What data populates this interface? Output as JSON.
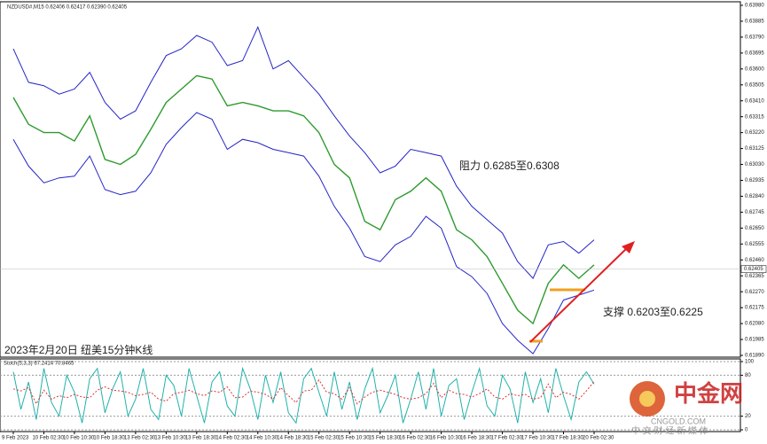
{
  "chart_data": [
    {
      "type": "line",
      "title": "NZDUSD#,M15 0.62406 0.62417 0.62390 0.62405",
      "categories": [
        "9 Feb 2023",
        null,
        "10 Feb 02:30",
        null,
        "10 Feb 10:30",
        null,
        "10 Feb 18:30",
        null,
        "13 Feb 02:30",
        null,
        "13 Feb 10:30",
        null,
        "13 Feb 18:30",
        null,
        "14 Feb 02:30",
        null,
        "14 Feb 10:30",
        null,
        "14 Feb 18:30",
        null,
        "15 Feb 02:30",
        null,
        "15 Feb 10:30",
        null,
        "15 Feb 18:30",
        null,
        "16 Feb 02:30",
        null,
        "16 Feb 10:30",
        null,
        "16 Feb 18:30",
        null,
        "17 Feb 02:30",
        null,
        "17 Feb 10:30",
        null,
        "17 Feb 18:30",
        null,
        "20 Feb 02:30"
      ],
      "series": [
        {
          "name": "close",
          "color": "#2e9a2e",
          "values": [
            0.6343,
            0.6327,
            0.6322,
            0.6322,
            0.6317,
            0.6332,
            0.6306,
            0.6303,
            0.6309,
            0.6324,
            0.634,
            0.6348,
            0.6356,
            0.6354,
            0.6338,
            0.634,
            0.6338,
            0.6335,
            0.6335,
            0.6332,
            0.6322,
            0.6303,
            0.6295,
            0.6269,
            0.6264,
            0.6282,
            0.6287,
            0.6295,
            0.6287,
            0.6264,
            0.6258,
            0.6248,
            0.6232,
            0.6216,
            0.6208,
            0.6232,
            0.6243,
            0.6235,
            0.6243
          ]
        },
        {
          "name": "upper",
          "color": "#2424c8",
          "values": [
            0.6372,
            0.6352,
            0.635,
            0.6345,
            0.6348,
            0.6358,
            0.634,
            0.633,
            0.6335,
            0.6352,
            0.6368,
            0.6372,
            0.638,
            0.6376,
            0.6362,
            0.6365,
            0.6385,
            0.636,
            0.6365,
            0.6355,
            0.6345,
            0.6332,
            0.632,
            0.631,
            0.6298,
            0.6302,
            0.6312,
            0.631,
            0.6308,
            0.629,
            0.6278,
            0.627,
            0.6262,
            0.6245,
            0.6235,
            0.6255,
            0.6257,
            0.625,
            0.6258
          ]
        },
        {
          "name": "lower",
          "color": "#2424c8",
          "values": [
            0.6318,
            0.6302,
            0.6292,
            0.6295,
            0.6296,
            0.6308,
            0.6288,
            0.6285,
            0.6287,
            0.6298,
            0.6315,
            0.6325,
            0.6334,
            0.633,
            0.6312,
            0.6318,
            0.6316,
            0.6312,
            0.631,
            0.6308,
            0.6296,
            0.6278,
            0.6265,
            0.6248,
            0.6245,
            0.6255,
            0.626,
            0.6272,
            0.6265,
            0.6242,
            0.6236,
            0.6226,
            0.6208,
            0.6198,
            0.619,
            0.6205,
            0.6222,
            0.6225,
            0.6228
          ]
        }
      ],
      "ylim": [
        0.6189,
        0.6398
      ],
      "yticks": [
        {
          "value": 0.6398,
          "label": "0.63980"
        },
        0.63885,
        {
          "value": 0.6379,
          "label": "0.63790"
        },
        0.63695,
        {
          "value": 0.636,
          "label": "0.63600"
        },
        0.63505,
        {
          "value": 0.6341,
          "label": "0.63410"
        },
        0.63315,
        {
          "value": 0.6322,
          "label": "0.63220"
        },
        0.63125,
        {
          "value": 0.6303,
          "label": "0.63030"
        },
        0.62935,
        {
          "value": 0.6284,
          "label": "0.62840"
        },
        0.62745,
        {
          "value": 0.6265,
          "label": "0.62650"
        },
        0.62555,
        {
          "value": 0.6246,
          "label": "0.62460"
        },
        0.62365,
        {
          "value": 0.6227,
          "label": "0.62270"
        },
        0.62175,
        {
          "value": 0.6208,
          "label": "0.62080"
        },
        0.61985,
        {
          "value": 0.6189,
          "label": "0.61890"
        }
      ],
      "last_price": 0.62405,
      "annotations": [
        "阻力 0.6285至0.6308",
        "支撑 0.6203至0.6225",
        "2023年2月20日 纽美15分钟K线"
      ]
    },
    {
      "type": "line",
      "title": "Stoch(5,3,3) 67.2414 70.8465",
      "series": [
        {
          "name": "main",
          "color": "#20b2aa",
          "values": [
            85,
            30,
            70,
            15,
            90,
            40,
            20,
            80,
            55,
            10,
            75,
            90,
            25,
            60,
            85,
            20,
            45,
            90,
            30,
            15,
            80,
            65,
            20,
            90,
            50,
            10,
            70,
            85,
            35,
            20,
            90,
            60,
            15,
            80,
            40,
            85,
            25,
            10,
            75,
            90,
            55,
            20,
            85,
            30,
            70,
            15,
            60,
            90,
            25,
            50,
            80,
            10,
            45,
            85,
            30,
            90,
            20,
            65,
            75,
            15,
            55,
            90,
            35,
            20,
            80,
            60,
            10,
            85,
            40,
            75,
            25,
            90,
            50,
            15,
            70,
            85,
            67
          ]
        },
        {
          "name": "signal",
          "color": "#e03030",
          "values": [
            60,
            57,
            62,
            38,
            58,
            45,
            50,
            47,
            52,
            48,
            47,
            58,
            63,
            58,
            57,
            55,
            50,
            52,
            55,
            45,
            42,
            53,
            55,
            58,
            53,
            50,
            57,
            55,
            63,
            47,
            48,
            57,
            55,
            52,
            45,
            62,
            50,
            40,
            57,
            58,
            73,
            55,
            53,
            45,
            62,
            38,
            48,
            55,
            58,
            55,
            52,
            47,
            45,
            47,
            53,
            68,
            47,
            58,
            53,
            52,
            48,
            53,
            60,
            48,
            45,
            53,
            50,
            52,
            45,
            47,
            67,
            47,
            55,
            52,
            45,
            57,
            71
          ]
        }
      ],
      "ylim": [
        0,
        100
      ],
      "yticks": [
        0,
        20,
        80,
        100
      ]
    }
  ],
  "watermark": {
    "logo": "中金网",
    "site": "CNGOLD.COM",
    "slogan": "中 文 财 经 新 媒 体"
  }
}
